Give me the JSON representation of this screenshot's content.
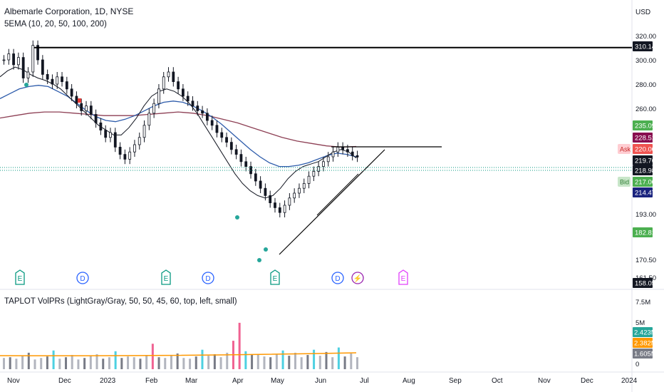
{
  "header": {
    "title": "Albemarle Corporation, 1D, NYSE",
    "indicator_label": "5EMA (10, 20, 50, 100, 200)",
    "volume_label": "TAPLOT VolPRs (LightGray/Gray, 50, 50, 45, 60, top, left, small)"
  },
  "chart_data": {
    "type": "candlestick",
    "symbol": "ALB",
    "timeframe": "1D",
    "currency": "USD",
    "price_axis": {
      "ticks": [
        320.0,
        300.0,
        280.0,
        260.0,
        193.0,
        170.5,
        161.5
      ],
      "tick_labels": [
        "320.00",
        "300.00",
        "280.00",
        "260.00",
        "193.00",
        "170.50",
        "161.50"
      ]
    },
    "price_badges": [
      {
        "label": "310.14",
        "value": 310.14,
        "color": "#131722"
      },
      {
        "label": "235.09",
        "value": 235.09,
        "color": "#4caf50"
      },
      {
        "label": "228.51",
        "value": 228.51,
        "color": "#880e4f"
      },
      {
        "label": "220.00",
        "value": 220.0,
        "color": "#ef5350",
        "tag": "Ask"
      },
      {
        "label": "219.76",
        "value": 219.76,
        "color": "#131722"
      },
      {
        "label": "218.98",
        "value": 218.98,
        "color": "#131722"
      },
      {
        "label": "217.00",
        "value": 217.0,
        "color": "#4caf50",
        "tag": "Bid"
      },
      {
        "label": "214.47",
        "value": 214.47,
        "color": "#1a237e"
      },
      {
        "label": "182.81",
        "value": 182.81,
        "color": "#4caf50"
      },
      {
        "label": "158.05",
        "value": 158.05,
        "color": "#131722"
      }
    ],
    "volume_axis": {
      "tick_labels": [
        "7.5M",
        "5M",
        "0"
      ],
      "ticks": [
        7.5,
        5,
        0
      ],
      "badges": [
        {
          "label": "2.423M",
          "value": 2.423,
          "color": "#26a69a"
        },
        {
          "label": "2.382M",
          "value": 2.382,
          "color": "#ff9800"
        },
        {
          "label": "1.605M",
          "value": 1.605,
          "color": "#787b86"
        }
      ]
    },
    "time_axis": {
      "labels": [
        "Nov",
        "Dec",
        "2023",
        "Feb",
        "Mar",
        "Apr",
        "May",
        "Jun",
        "Jul",
        "Aug",
        "Sep",
        "Oct",
        "Nov",
        "Dec",
        "2024"
      ]
    },
    "events": [
      {
        "kind": "E",
        "color": "#089981"
      },
      {
        "kind": "D",
        "color": "#2962ff"
      },
      {
        "kind": "E",
        "color": "#089981"
      },
      {
        "kind": "D",
        "color": "#2962ff"
      },
      {
        "kind": "E",
        "color": "#089981"
      },
      {
        "kind": "D",
        "color": "#2962ff"
      },
      {
        "kind": "⚡",
        "color": "#9c27b0"
      },
      {
        "kind": "E",
        "color": "#e040fb"
      }
    ],
    "price_path": [
      300,
      305,
      296,
      302,
      285,
      290,
      312,
      300,
      288,
      284,
      280,
      286,
      282,
      276,
      270,
      264,
      258,
      262,
      255,
      248,
      242,
      236,
      240,
      228,
      222,
      218,
      224,
      230,
      236,
      246,
      256,
      264,
      276,
      286,
      290,
      282,
      276,
      270,
      266,
      262,
      258,
      256,
      250,
      246,
      240,
      236,
      232,
      226,
      222,
      216,
      212,
      206,
      200,
      194,
      188,
      182,
      178,
      174,
      180,
      186,
      190,
      194,
      198,
      204,
      208,
      212,
      216,
      220,
      224,
      228,
      226,
      224,
      221,
      219.76
    ],
    "ema_short": [
      286,
      291,
      294,
      292,
      288,
      285,
      283,
      280,
      276,
      270,
      264,
      258,
      252,
      246,
      242,
      238,
      238,
      244,
      252,
      262,
      270,
      274,
      276,
      274,
      270,
      264,
      256,
      246,
      236,
      226,
      216,
      206,
      198,
      192,
      188,
      186,
      188,
      194,
      202,
      208,
      212,
      214,
      216,
      220,
      224,
      226,
      224,
      219
    ],
    "ema_mid": [
      268,
      272,
      276,
      278,
      279,
      278,
      274,
      270,
      264,
      258,
      253,
      250,
      249,
      251,
      254,
      258,
      262,
      265,
      266,
      265,
      262,
      258,
      253,
      247,
      240,
      233,
      226,
      220,
      215,
      212,
      212,
      213,
      215,
      218,
      221,
      223,
      222,
      220
    ],
    "ema_long": [
      252,
      254,
      256,
      257,
      257,
      256,
      255,
      254,
      254,
      254,
      255,
      256,
      257,
      256,
      254,
      251,
      248,
      244,
      240,
      236,
      233,
      231,
      229,
      228,
      228.51
    ],
    "volume_values": [
      1.5,
      1.6,
      1.4,
      1.8,
      2.2,
      1.3,
      1.5,
      1.7,
      2.5,
      1.4,
      1.6,
      1.9,
      1.3,
      1.5,
      1.8,
      2.0,
      1.4,
      1.6,
      2.4,
      1.5,
      1.7,
      1.6,
      1.4,
      1.9,
      3.4,
      1.6,
      1.5,
      1.8,
      2.1,
      1.5,
      1.4,
      1.7,
      2.6,
      1.8,
      2.0,
      1.6,
      2.2,
      3.8,
      6.2,
      2.4,
      1.9,
      2.0,
      1.7,
      1.6,
      2.0,
      2.5,
      1.8,
      2.2,
      1.6,
      1.9,
      2.6,
      1.8,
      2.3,
      1.6,
      2.9,
      1.7,
      2.1,
      1.605
    ],
    "volume_ma": 2.382,
    "resistance_level": 310.14,
    "horizontal_level": 228.51,
    "grid": true,
    "legend_position": "top-left"
  }
}
